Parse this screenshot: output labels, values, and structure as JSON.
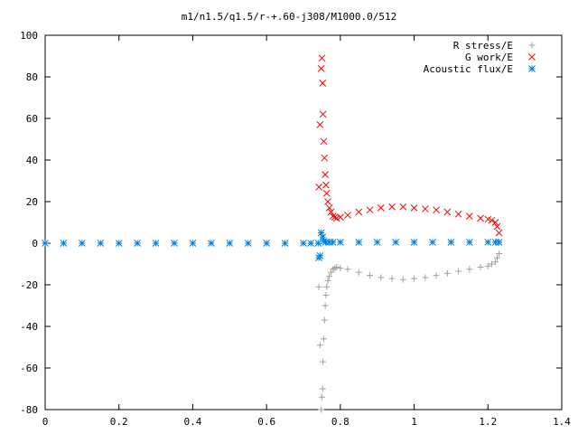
{
  "chart_data": {
    "type": "scatter",
    "title": "m1/n1.5/q1.5/r-+.60-j308/M1000.0/512",
    "xlabel": "",
    "ylabel": "",
    "xlim": [
      0,
      1.4
    ],
    "ylim": [
      -80,
      100
    ],
    "xticks": [
      "0",
      "0.2",
      "0.4",
      "0.6",
      "0.8",
      "1",
      "1.2",
      "1.4"
    ],
    "yticks": [
      "100",
      "80",
      "60",
      "40",
      "20",
      "0",
      "-20",
      "-40",
      "-60",
      "-80"
    ],
    "grid": false,
    "legend_position": "top-right",
    "series": [
      {
        "name": "R stress/E",
        "marker": "+",
        "color": "#a0a0a0",
        "x": [
          0.742,
          0.745,
          0.748,
          0.75,
          0.752,
          0.753,
          0.755,
          0.757,
          0.759,
          0.761,
          0.763,
          0.766,
          0.77,
          0.775,
          0.78,
          0.785,
          0.79,
          0.8,
          0.82,
          0.85,
          0.88,
          0.91,
          0.94,
          0.97,
          1.0,
          1.03,
          1.06,
          1.09,
          1.12,
          1.15,
          1.18,
          1.2,
          1.21,
          1.22,
          1.225,
          1.23
        ],
        "y": [
          -21,
          -49,
          -80,
          -74,
          -70,
          -57,
          -46,
          -37,
          -30,
          -25,
          -21,
          -18,
          -16,
          -14,
          -12.5,
          -12,
          -11.5,
          -12,
          -12.5,
          -14,
          -15.5,
          -16.5,
          -17,
          -17.5,
          -17,
          -16.5,
          -15.5,
          -14.5,
          -13.5,
          -12.5,
          -11.5,
          -11,
          -10,
          -9,
          -7,
          -5
        ]
      },
      {
        "name": "G work/E",
        "marker": "x",
        "color": "#ff0000",
        "x": [
          0.742,
          0.745,
          0.748,
          0.75,
          0.752,
          0.753,
          0.755,
          0.757,
          0.759,
          0.761,
          0.763,
          0.766,
          0.77,
          0.775,
          0.78,
          0.785,
          0.79,
          0.8,
          0.82,
          0.85,
          0.88,
          0.91,
          0.94,
          0.97,
          1.0,
          1.03,
          1.06,
          1.09,
          1.12,
          1.15,
          1.18,
          1.2,
          1.21,
          1.22,
          1.225,
          1.23
        ],
        "y": [
          27,
          57,
          84,
          89,
          77,
          62,
          49,
          41,
          33,
          28,
          24,
          20,
          17,
          15,
          13,
          12.5,
          12,
          12.5,
          13.5,
          15,
          16,
          17,
          17.5,
          17.5,
          17,
          16.5,
          16,
          15,
          14,
          13,
          12,
          11.5,
          11,
          10,
          8,
          5
        ]
      },
      {
        "name": "Acoustic flux/E",
        "marker": "*",
        "color": "#0080e0",
        "x": [
          0.0,
          0.05,
          0.1,
          0.15,
          0.2,
          0.25,
          0.3,
          0.35,
          0.4,
          0.45,
          0.5,
          0.55,
          0.6,
          0.65,
          0.7,
          0.72,
          0.74,
          0.742,
          0.745,
          0.748,
          0.752,
          0.755,
          0.76,
          0.77,
          0.78,
          0.8,
          0.85,
          0.9,
          0.95,
          1.0,
          1.05,
          1.1,
          1.15,
          1.2,
          1.22,
          1.23
        ],
        "y": [
          0,
          0,
          0,
          0,
          0,
          0,
          0,
          0,
          0,
          0,
          0,
          0,
          0,
          0,
          0,
          0,
          0,
          -7,
          -6,
          5,
          3,
          1,
          0.5,
          0.5,
          0.5,
          0.5,
          0.5,
          0.5,
          0.5,
          0.5,
          0.5,
          0.5,
          0.5,
          0.5,
          0.5,
          0.5
        ]
      }
    ]
  }
}
